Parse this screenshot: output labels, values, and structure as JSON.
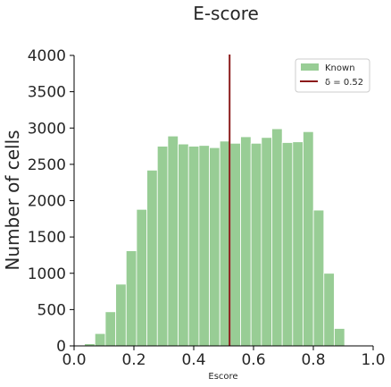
{
  "chart_data": {
    "type": "bar",
    "title": "E-score",
    "xlabel": "Escore",
    "ylabel": "Number of cells",
    "xlim": [
      0.0,
      1.0
    ],
    "ylim": [
      0,
      4000
    ],
    "xticks": [
      "0.0",
      "0.2",
      "0.4",
      "0.6",
      "0.8",
      "1.0"
    ],
    "xtick_values": [
      0.0,
      0.2,
      0.4,
      0.6,
      0.8,
      1.0
    ],
    "yticks": [
      "0",
      "500",
      "1000",
      "1500",
      "2000",
      "2500",
      "3000",
      "3500",
      "4000"
    ],
    "ytick_values": [
      0,
      500,
      1000,
      1500,
      2000,
      2500,
      3000,
      3500,
      4000
    ],
    "bin_edges": [
      0.0,
      0.0348,
      0.0696,
      0.1044,
      0.1392,
      0.174,
      0.2088,
      0.2436,
      0.2784,
      0.3132,
      0.348,
      0.3828,
      0.4176,
      0.4524,
      0.4872,
      0.522,
      0.5568,
      0.5916,
      0.6264,
      0.6612,
      0.696,
      0.7308,
      0.7656,
      0.8004,
      0.8352,
      0.87,
      0.9048,
      0.9396,
      0.9744
    ],
    "values": [
      0,
      30,
      170,
      470,
      850,
      1310,
      1880,
      2420,
      2750,
      2890,
      2780,
      2750,
      2760,
      2730,
      2820,
      2790,
      2880,
      2790,
      2870,
      2990,
      2800,
      2810,
      2950,
      1870,
      1000,
      240,
      0,
      0
    ],
    "series": [
      {
        "name": "Known",
        "color": "#98cd95"
      }
    ],
    "vline": {
      "x": 0.52,
      "label": "δ = 0.52",
      "color": "#8b1a1a"
    },
    "legend_position": "top-right",
    "grid": false
  }
}
